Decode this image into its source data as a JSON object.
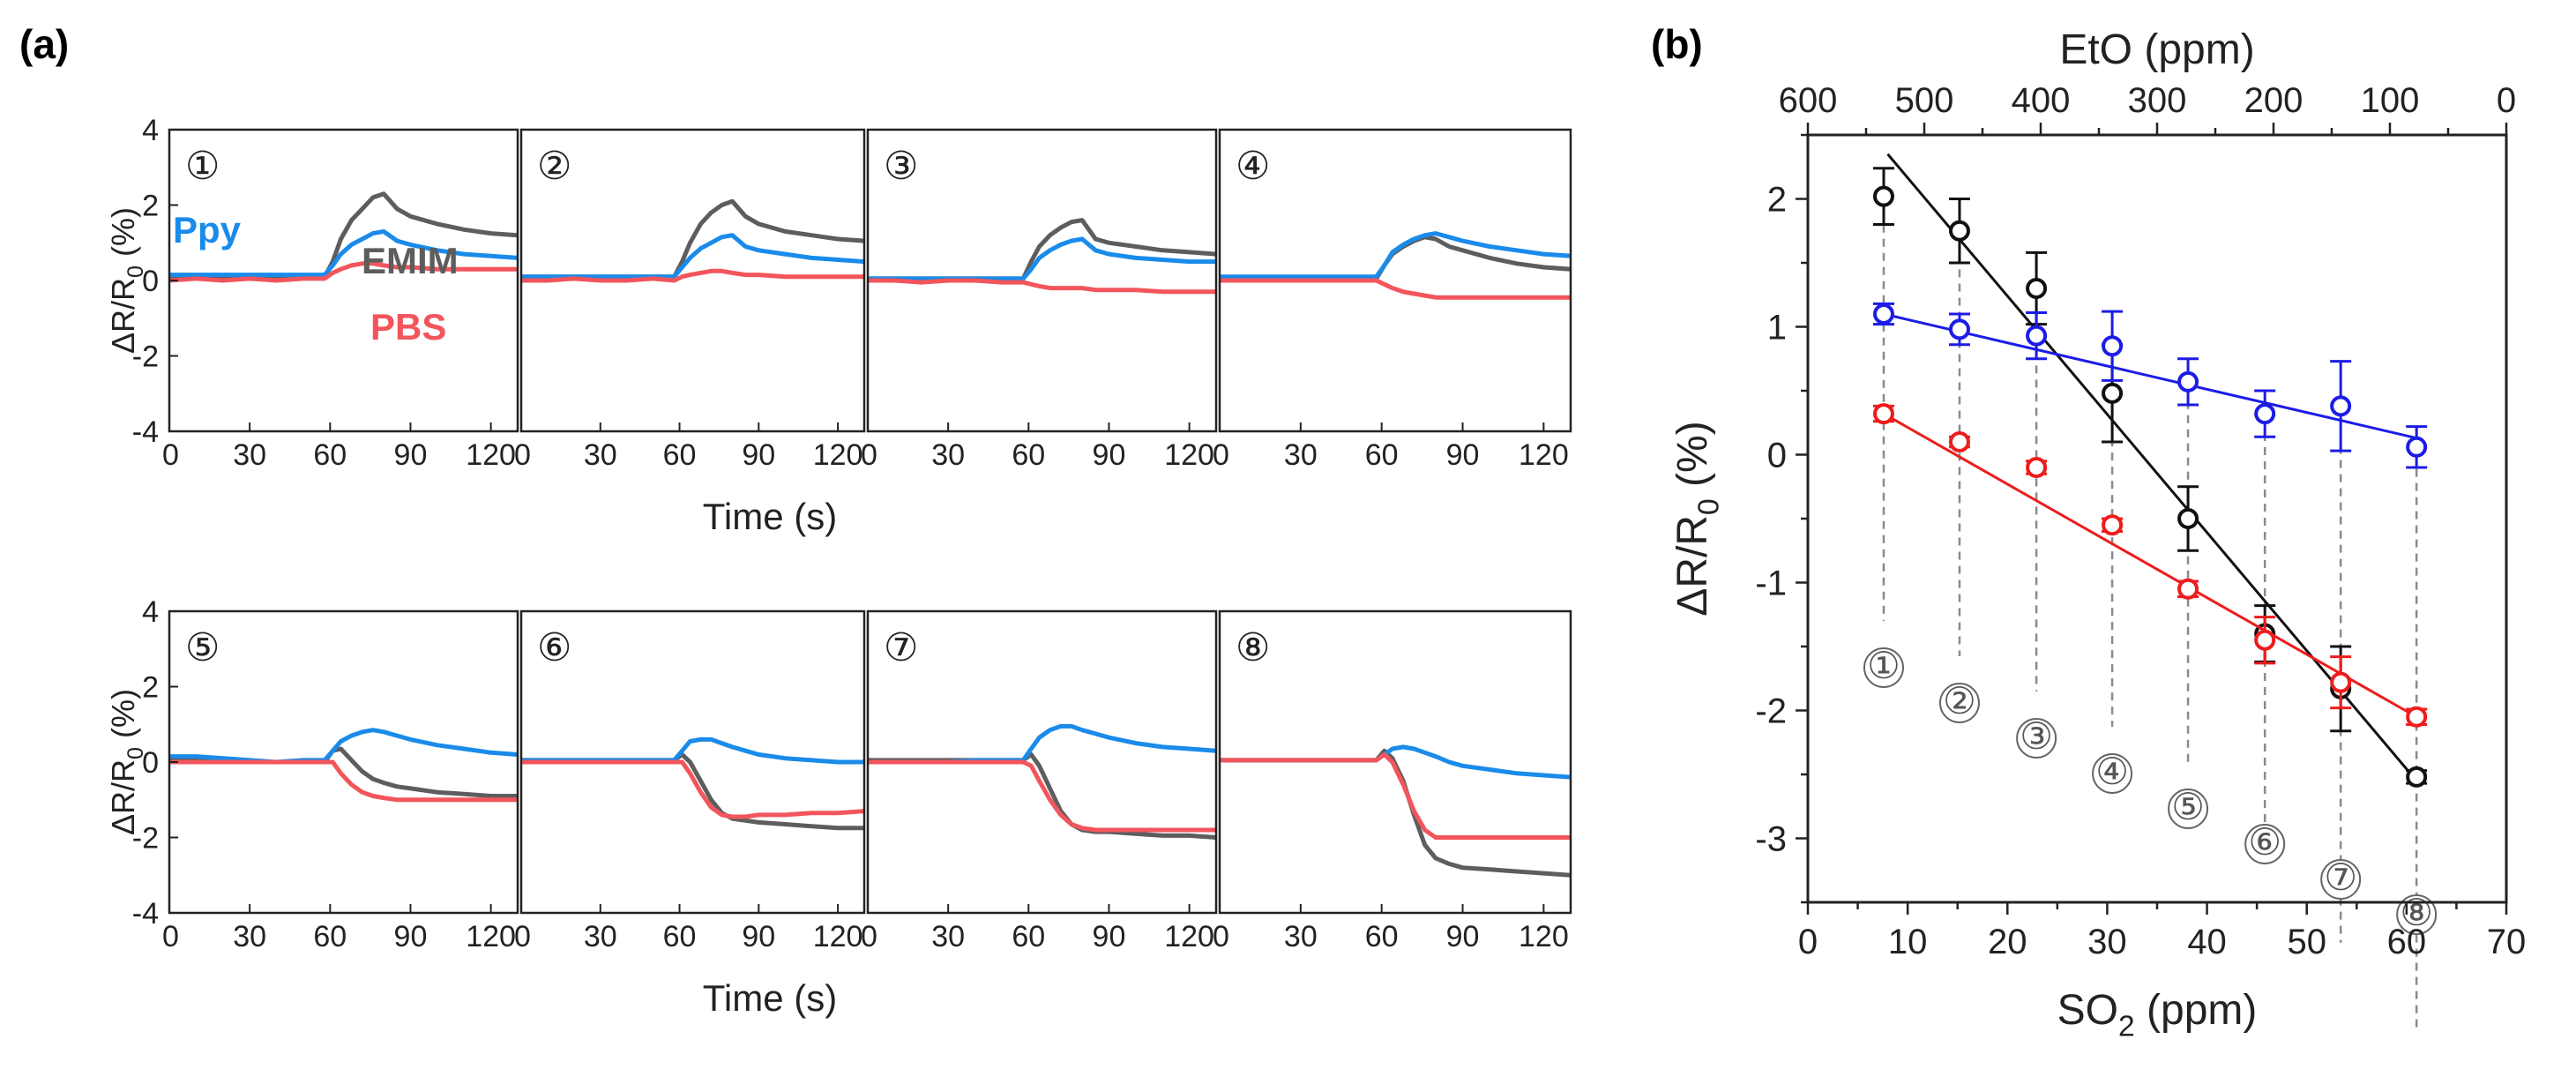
{
  "figure": {
    "panel_a_label": "(a)",
    "panel_b_label": "(b)"
  },
  "colors": {
    "emim": "#5d5d5d",
    "ppy": "#1a8bea",
    "pbs": "#f2555b",
    "b_black": "#111111",
    "b_blue": "#1c1ce6",
    "b_red": "#ee1c1c",
    "axis": "#222222",
    "dash": "#8a8a8a"
  },
  "chart_data": [
    {
      "type": "line",
      "id": "panel-a",
      "title": "(a)",
      "xlabel": "Time (s)",
      "ylabel": "ΔR/R0 (%)",
      "ylabel_main": "ΔR/R",
      "ylabel_sub": "0",
      "ylabel_tail": " (%)",
      "xlim": [
        0,
        130
      ],
      "ylim": [
        -4,
        4
      ],
      "xticks": [
        0,
        30,
        60,
        90,
        120
      ],
      "xtick_labels": [
        "0",
        "30",
        "60",
        "90",
        "120"
      ],
      "yticks": [
        -4,
        -2,
        0,
        2,
        4
      ],
      "ytick_labels": [
        "-4",
        "-2",
        "0",
        "2",
        "4"
      ],
      "legend": [
        {
          "name": "EMIM",
          "color_key": "emim"
        },
        {
          "name": "Ppy",
          "color_key": "ppy"
        },
        {
          "name": "PBS",
          "color_key": "pbs"
        }
      ],
      "x": [
        0,
        10,
        20,
        30,
        40,
        50,
        58,
        61,
        64,
        68,
        72,
        76,
        80,
        85,
        90,
        100,
        110,
        120,
        130
      ],
      "subplots": [
        {
          "label": "①",
          "series": [
            {
              "name": "EMIM",
              "values": [
                0.1,
                0.1,
                0.1,
                0.1,
                0.1,
                0.1,
                0.1,
                0.5,
                1.1,
                1.6,
                1.9,
                2.2,
                2.3,
                1.9,
                1.7,
                1.5,
                1.35,
                1.25,
                1.2
              ]
            },
            {
              "name": "Ppy",
              "values": [
                0.15,
                0.15,
                0.15,
                0.15,
                0.15,
                0.15,
                0.15,
                0.4,
                0.7,
                0.95,
                1.1,
                1.25,
                1.3,
                1.05,
                0.95,
                0.8,
                0.7,
                0.65,
                0.6
              ]
            },
            {
              "name": "PBS",
              "values": [
                0.0,
                0.05,
                0.0,
                0.05,
                0.0,
                0.05,
                0.05,
                0.2,
                0.3,
                0.4,
                0.45,
                0.45,
                0.4,
                0.35,
                0.35,
                0.3,
                0.3,
                0.3,
                0.3
              ]
            }
          ]
        },
        {
          "label": "②",
          "series": [
            {
              "name": "EMIM",
              "values": [
                0.1,
                0.1,
                0.1,
                0.1,
                0.1,
                0.1,
                0.1,
                0.5,
                1.0,
                1.5,
                1.8,
                2.0,
                2.1,
                1.7,
                1.5,
                1.3,
                1.2,
                1.1,
                1.05
              ]
            },
            {
              "name": "Ppy",
              "values": [
                0.1,
                0.1,
                0.1,
                0.1,
                0.1,
                0.1,
                0.1,
                0.35,
                0.6,
                0.85,
                1.0,
                1.15,
                1.2,
                0.9,
                0.8,
                0.7,
                0.6,
                0.55,
                0.5
              ]
            },
            {
              "name": "PBS",
              "values": [
                0.0,
                0.0,
                0.05,
                0.0,
                0.0,
                0.05,
                0.0,
                0.1,
                0.15,
                0.2,
                0.25,
                0.25,
                0.2,
                0.15,
                0.15,
                0.1,
                0.1,
                0.1,
                0.1
              ]
            }
          ]
        },
        {
          "label": "③",
          "series": [
            {
              "name": "EMIM",
              "values": [
                0.05,
                0.05,
                0.05,
                0.05,
                0.05,
                0.05,
                0.05,
                0.5,
                0.9,
                1.2,
                1.4,
                1.55,
                1.6,
                1.1,
                1.0,
                0.9,
                0.8,
                0.75,
                0.7
              ]
            },
            {
              "name": "Ppy",
              "values": [
                0.05,
                0.05,
                0.05,
                0.05,
                0.05,
                0.05,
                0.05,
                0.3,
                0.6,
                0.8,
                0.95,
                1.05,
                1.1,
                0.8,
                0.7,
                0.6,
                0.55,
                0.5,
                0.5
              ]
            },
            {
              "name": "PBS",
              "values": [
                0.0,
                0.0,
                -0.05,
                0.0,
                0.0,
                -0.05,
                -0.05,
                -0.1,
                -0.15,
                -0.2,
                -0.2,
                -0.2,
                -0.2,
                -0.25,
                -0.25,
                -0.25,
                -0.3,
                -0.3,
                -0.3
              ]
            }
          ]
        },
        {
          "label": "④",
          "series": [
            {
              "name": "EMIM",
              "values": [
                0.05,
                0.05,
                0.05,
                0.05,
                0.05,
                0.05,
                0.05,
                0.4,
                0.7,
                0.9,
                1.05,
                1.15,
                1.1,
                0.9,
                0.8,
                0.6,
                0.45,
                0.35,
                0.3
              ]
            },
            {
              "name": "Ppy",
              "values": [
                0.1,
                0.1,
                0.1,
                0.1,
                0.1,
                0.1,
                0.1,
                0.4,
                0.75,
                0.95,
                1.1,
                1.2,
                1.25,
                1.15,
                1.05,
                0.9,
                0.8,
                0.7,
                0.65
              ]
            },
            {
              "name": "PBS",
              "values": [
                0.0,
                0.0,
                0.0,
                0.0,
                0.0,
                0.0,
                0.0,
                -0.1,
                -0.2,
                -0.3,
                -0.35,
                -0.4,
                -0.45,
                -0.45,
                -0.45,
                -0.45,
                -0.45,
                -0.45,
                -0.45
              ]
            }
          ]
        },
        {
          "label": "⑤",
          "series": [
            {
              "name": "EMIM",
              "values": [
                0.1,
                0.1,
                0.05,
                0.0,
                0.0,
                0.0,
                0.0,
                0.3,
                0.35,
                0.05,
                -0.25,
                -0.45,
                -0.55,
                -0.65,
                -0.7,
                -0.8,
                -0.85,
                -0.9,
                -0.9
              ]
            },
            {
              "name": "Ppy",
              "values": [
                0.15,
                0.15,
                0.1,
                0.05,
                0.0,
                0.05,
                0.05,
                0.3,
                0.55,
                0.7,
                0.8,
                0.85,
                0.8,
                0.7,
                0.6,
                0.45,
                0.35,
                0.25,
                0.2
              ]
            },
            {
              "name": "PBS",
              "values": [
                0.0,
                0.0,
                0.0,
                0.0,
                0.0,
                0.0,
                0.0,
                0.0,
                -0.3,
                -0.6,
                -0.8,
                -0.9,
                -0.95,
                -1.0,
                -1.0,
                -1.0,
                -1.0,
                -1.0,
                -1.0
              ]
            }
          ]
        },
        {
          "label": "⑥",
          "series": [
            {
              "name": "EMIM",
              "values": [
                0.05,
                0.05,
                0.05,
                0.05,
                0.05,
                0.05,
                0.05,
                0.2,
                0.0,
                -0.5,
                -1.0,
                -1.35,
                -1.5,
                -1.55,
                -1.6,
                -1.65,
                -1.7,
                -1.75,
                -1.75
              ]
            },
            {
              "name": "Ppy",
              "values": [
                0.05,
                0.05,
                0.05,
                0.05,
                0.05,
                0.05,
                0.05,
                0.3,
                0.55,
                0.6,
                0.6,
                0.5,
                0.4,
                0.3,
                0.2,
                0.1,
                0.05,
                0.0,
                0.0
              ]
            },
            {
              "name": "PBS",
              "values": [
                0.0,
                0.0,
                0.0,
                0.0,
                0.0,
                0.0,
                0.0,
                0.0,
                -0.3,
                -0.8,
                -1.2,
                -1.4,
                -1.45,
                -1.45,
                -1.4,
                -1.4,
                -1.35,
                -1.35,
                -1.3
              ]
            }
          ]
        },
        {
          "label": "⑦",
          "series": [
            {
              "name": "EMIM",
              "values": [
                0.05,
                0.05,
                0.05,
                0.05,
                0.05,
                0.05,
                0.05,
                0.2,
                -0.1,
                -0.7,
                -1.3,
                -1.65,
                -1.8,
                -1.85,
                -1.85,
                -1.9,
                -1.95,
                -1.95,
                -2.0
              ]
            },
            {
              "name": "Ppy",
              "values": [
                0.0,
                0.0,
                0.0,
                0.0,
                0.05,
                0.05,
                0.05,
                0.35,
                0.65,
                0.85,
                0.95,
                0.95,
                0.85,
                0.75,
                0.65,
                0.5,
                0.4,
                0.35,
                0.3
              ]
            },
            {
              "name": "PBS",
              "values": [
                0.0,
                0.0,
                0.0,
                0.0,
                0.0,
                0.0,
                0.0,
                -0.1,
                -0.5,
                -1.0,
                -1.4,
                -1.65,
                -1.75,
                -1.8,
                -1.8,
                -1.8,
                -1.8,
                -1.8,
                -1.8
              ]
            }
          ]
        },
        {
          "label": "⑧",
          "series": [
            {
              "name": "EMIM",
              "values": [
                0.05,
                0.05,
                0.05,
                0.05,
                0.05,
                0.05,
                0.05,
                0.3,
                0.1,
                -0.5,
                -1.4,
                -2.2,
                -2.55,
                -2.7,
                -2.8,
                -2.85,
                -2.9,
                -2.95,
                -3.0
              ]
            },
            {
              "name": "Ppy",
              "values": [
                0.05,
                0.05,
                0.05,
                0.05,
                0.05,
                0.05,
                0.05,
                0.2,
                0.35,
                0.4,
                0.35,
                0.25,
                0.15,
                0.0,
                -0.1,
                -0.2,
                -0.3,
                -0.35,
                -0.4
              ]
            },
            {
              "name": "PBS",
              "values": [
                0.05,
                0.05,
                0.05,
                0.05,
                0.05,
                0.05,
                0.05,
                0.2,
                0.0,
                -0.6,
                -1.3,
                -1.8,
                -2.0,
                -2.0,
                -2.0,
                -2.0,
                -2.0,
                -2.0,
                -2.0
              ]
            }
          ]
        }
      ]
    },
    {
      "type": "scatter",
      "id": "panel-b",
      "title": "(b)",
      "xlabel": "SO2 (ppm)",
      "xlabel_main": "SO",
      "xlabel_sub": "2",
      "xlabel_tail": " (ppm)",
      "x2label": "EtO (ppm)",
      "ylabel": "ΔR/R0 (%)",
      "ylabel_main": "ΔR/R",
      "ylabel_sub": "0",
      "ylabel_tail": " (%)",
      "xlim": [
        0,
        70
      ],
      "ylim": [
        -3.5,
        2.5
      ],
      "x2lim": [
        600,
        0
      ],
      "xticks": [
        0,
        10,
        20,
        30,
        40,
        50,
        60,
        70
      ],
      "xtick_labels": [
        "0",
        "10",
        "20",
        "30",
        "40",
        "50",
        "60",
        "70"
      ],
      "yticks": [
        -3,
        -2,
        -1,
        0,
        1,
        2
      ],
      "ytick_labels": [
        "-3",
        "-2",
        "-1",
        "0",
        "1",
        "2"
      ],
      "x2ticks": [
        600,
        500,
        400,
        300,
        200,
        100,
        0
      ],
      "x2tick_labels": [
        "600",
        "500",
        "400",
        "300",
        "200",
        "100",
        "0"
      ],
      "x": [
        7.6,
        15.2,
        22.9,
        30.5,
        38.1,
        45.8,
        53.4,
        61.0
      ],
      "point_labels": [
        "①",
        "②",
        "③",
        "④",
        "⑤",
        "⑥",
        "⑦",
        "⑧"
      ],
      "series": [
        {
          "name": "EMIM",
          "color_key": "b_black",
          "values": [
            2.02,
            1.75,
            1.3,
            0.48,
            -0.5,
            -1.4,
            -1.83,
            -2.52
          ],
          "errors": [
            0.22,
            0.25,
            0.28,
            0.38,
            0.25,
            0.22,
            0.33,
            0.05
          ],
          "fit": {
            "x": [
              8,
              61
            ],
            "y": [
              2.35,
              -2.55
            ]
          }
        },
        {
          "name": "Ppy",
          "color_key": "b_blue",
          "values": [
            1.1,
            0.98,
            0.93,
            0.85,
            0.57,
            0.32,
            0.38,
            0.06
          ],
          "errors": [
            0.08,
            0.12,
            0.18,
            0.27,
            0.18,
            0.18,
            0.35,
            0.16
          ],
          "fit": {
            "x": [
              7.6,
              61
            ],
            "y": [
              1.1,
              0.13
            ]
          }
        },
        {
          "name": "PBS",
          "color_key": "b_red",
          "values": [
            0.32,
            0.1,
            -0.1,
            -0.55,
            -1.05,
            -1.45,
            -1.78,
            -2.05
          ],
          "errors": [
            0.06,
            0.04,
            0.05,
            0.05,
            0.06,
            0.18,
            0.2,
            0.06
          ],
          "fit": {
            "x": [
              7.6,
              61
            ],
            "y": [
              0.32,
              -2.05
            ]
          }
        }
      ]
    }
  ]
}
